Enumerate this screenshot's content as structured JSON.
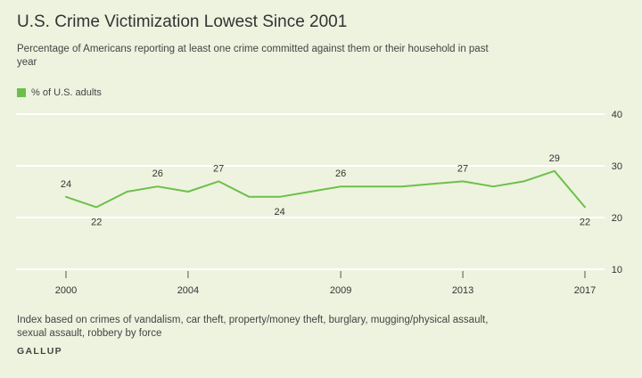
{
  "title": "U.S. Crime Victimization Lowest Since 2001",
  "subtitle": "Percentage of Americans reporting at least one crime committed against them or their household in past year",
  "note": "Index based on crimes of vandalism, car theft, property/money theft, burglary, mugging/physical assault, sexual assault, robbery by force",
  "source": "GALLUP",
  "colors": {
    "series": "#6cc04a",
    "grid": "#ffffff",
    "axis": "#555555",
    "text": "#333333"
  },
  "chart_data": {
    "type": "line",
    "title": "U.S. Crime Victimization Lowest Since 2001",
    "xlabel": "",
    "ylabel": "",
    "ylim": [
      10,
      40
    ],
    "yticks": [
      10,
      20,
      30,
      40
    ],
    "xlim": [
      2000,
      2017
    ],
    "xticks": [
      2000,
      2004,
      2009,
      2013,
      2017
    ],
    "grid": true,
    "legend_position": "top-left",
    "series": [
      {
        "name": "% of U.S. adults",
        "x": [
          2000,
          2001,
          2002,
          2003,
          2004,
          2005,
          2006,
          2007,
          2008,
          2009,
          2010,
          2011,
          2012,
          2013,
          2014,
          2015,
          2016,
          2017
        ],
        "values": [
          24,
          22,
          25,
          26,
          25,
          27,
          24,
          24,
          25,
          26,
          26,
          26,
          26.5,
          27,
          26,
          27,
          29,
          22
        ]
      }
    ],
    "data_labels": [
      {
        "x": 2000,
        "y": 24,
        "text": "24",
        "pos": "above"
      },
      {
        "x": 2001,
        "y": 22,
        "text": "22",
        "pos": "below"
      },
      {
        "x": 2003,
        "y": 26,
        "text": "26",
        "pos": "above"
      },
      {
        "x": 2005,
        "y": 27,
        "text": "27",
        "pos": "above"
      },
      {
        "x": 2007,
        "y": 24,
        "text": "24",
        "pos": "below"
      },
      {
        "x": 2009,
        "y": 26,
        "text": "26",
        "pos": "above"
      },
      {
        "x": 2013,
        "y": 27,
        "text": "27",
        "pos": "above"
      },
      {
        "x": 2016,
        "y": 29,
        "text": "29",
        "pos": "above"
      },
      {
        "x": 2017,
        "y": 22,
        "text": "22",
        "pos": "below"
      }
    ]
  }
}
